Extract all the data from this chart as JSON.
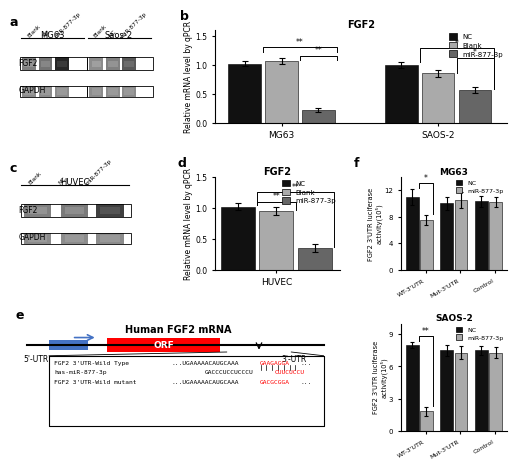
{
  "panel_b": {
    "title": "FGF2",
    "ylabel": "Relative mRNA level by qPCR",
    "groups": [
      "MG63",
      "SAOS-2"
    ],
    "categories": [
      "NC",
      "Blank",
      "miR-877-3p"
    ],
    "values": [
      [
        1.02,
        1.07,
        0.22
      ],
      [
        1.0,
        0.85,
        0.57
      ]
    ],
    "errors": [
      [
        0.05,
        0.05,
        0.03
      ],
      [
        0.05,
        0.06,
        0.05
      ]
    ],
    "colors": [
      "#111111",
      "#aaaaaa",
      "#666666"
    ],
    "ylim": [
      0,
      1.6
    ],
    "yticks": [
      0.0,
      0.5,
      1.0,
      1.5
    ]
  },
  "panel_d": {
    "title": "FGF2",
    "ylabel": "Relative mRNA level by qPCR",
    "group": "HUVEC",
    "categories": [
      "NC",
      "Blank",
      "miR-877-3p"
    ],
    "values": [
      1.02,
      0.95,
      0.35
    ],
    "errors": [
      0.05,
      0.07,
      0.06
    ],
    "colors": [
      "#111111",
      "#aaaaaa",
      "#666666"
    ],
    "ylim": [
      0,
      1.5
    ],
    "yticks": [
      0.0,
      0.5,
      1.0,
      1.5
    ]
  },
  "panel_f_mg63": {
    "title": "MG63",
    "ylabel": "FGF2 3'UTR luciferase\nactivity(10⁵)",
    "categories": [
      "WT-3'UTR",
      "Mut-3'UTR",
      "Control"
    ],
    "values_nc": [
      11.0,
      10.0,
      10.3
    ],
    "values_mir": [
      7.5,
      10.5,
      10.2
    ],
    "errors_nc": [
      1.2,
      1.0,
      0.8
    ],
    "errors_mir": [
      0.8,
      1.2,
      0.7
    ],
    "colors": [
      "#111111",
      "#aaaaaa"
    ],
    "ylim": [
      0,
      14
    ],
    "yticks": [
      0,
      4,
      8,
      12
    ],
    "sig": "*"
  },
  "panel_f_saos2": {
    "title": "SAOS-2",
    "ylabel": "FGF2 3'UTR luciferase\nactivity(10⁵)",
    "categories": [
      "WT-3'UTR",
      "Mut-3'UTR",
      "Control"
    ],
    "values_nc": [
      8.0,
      7.5,
      7.5
    ],
    "values_mir": [
      1.8,
      7.3,
      7.3
    ],
    "errors_nc": [
      0.25,
      0.5,
      0.4
    ],
    "errors_mir": [
      0.4,
      0.6,
      0.5
    ],
    "colors": [
      "#111111",
      "#aaaaaa"
    ],
    "ylim": [
      0,
      10
    ],
    "yticks": [
      0,
      3,
      6,
      9
    ],
    "sig": "**"
  },
  "legend_labels": [
    "NC",
    "Blank",
    "miR-877-3p"
  ],
  "legend_colors": [
    "#111111",
    "#aaaaaa",
    "#666666"
  ],
  "bg_color": "#ffffff"
}
